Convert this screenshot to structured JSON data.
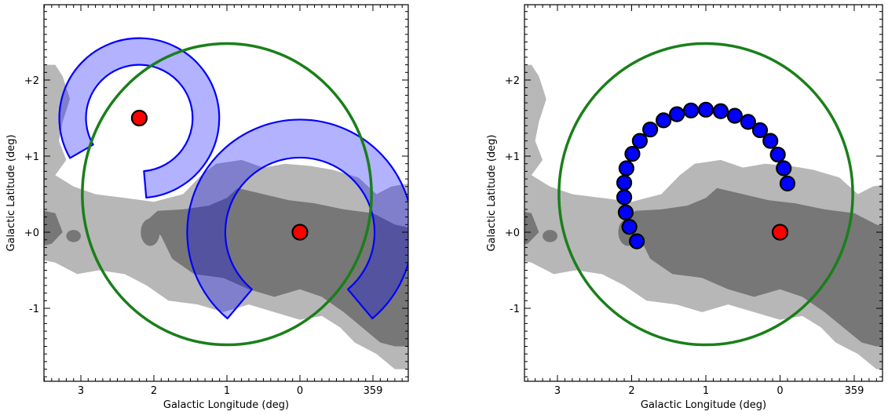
{
  "chart_data": [
    {
      "type": "scatter",
      "panel": "left",
      "xlabel": "Galactic Longitude (deg)",
      "ylabel": "Galactic Latitude (deg)",
      "xlim": [
        3.5,
        -1.5
      ],
      "ylim": [
        -2.05,
        3.05
      ],
      "xticks": [
        {
          "value": 3,
          "label": "3"
        },
        {
          "value": 2,
          "label": "2"
        },
        {
          "value": 1,
          "label": "1"
        },
        {
          "value": 0,
          "label": "0"
        },
        {
          "value": -1,
          "label": "359"
        }
      ],
      "yticks": [
        {
          "value": 2,
          "label": "+2"
        },
        {
          "value": 1,
          "label": "+1"
        },
        {
          "value": 0,
          "label": "+0"
        },
        {
          "value": -1,
          "label": "-1"
        }
      ],
      "grid": false,
      "green_circle": {
        "center": [
          1.0,
          0.5
        ],
        "radius": 1.98,
        "color": "#1a7f1a"
      },
      "sources": [
        {
          "l": 2.2,
          "b": 1.5,
          "color": "#ff0000"
        },
        {
          "l": 0.0,
          "b": 0.0,
          "color": "#ff0000"
        }
      ],
      "arc_bands": [
        {
          "center": [
            2.2,
            1.5
          ],
          "r_inner": 0.7,
          "r_outer": 1.05,
          "from_deg": -85,
          "to_deg": 210,
          "color": "#0000ff"
        },
        {
          "center": [
            0.0,
            0.0
          ],
          "r_inner": 0.98,
          "r_outer": 1.48,
          "from_deg": -50,
          "to_deg": 230,
          "color": "#0000ff"
        }
      ]
    },
    {
      "type": "scatter",
      "panel": "right",
      "xlabel": "Galactic Longitude (deg)",
      "ylabel": "Galactic Latitude (deg)",
      "xlim": [
        3.5,
        -1.5
      ],
      "ylim": [
        -2.05,
        3.05
      ],
      "xticks": [
        {
          "value": 3,
          "label": "3"
        },
        {
          "value": 2,
          "label": "2"
        },
        {
          "value": 1,
          "label": "1"
        },
        {
          "value": 0,
          "label": "0"
        },
        {
          "value": -1,
          "label": "359"
        }
      ],
      "yticks": [
        {
          "value": 2,
          "label": "+2"
        },
        {
          "value": 1,
          "label": "+1"
        },
        {
          "value": 0,
          "label": "+0"
        },
        {
          "value": -1,
          "label": "-1"
        }
      ],
      "grid": false,
      "green_circle": {
        "center": [
          1.0,
          0.5
        ],
        "radius": 1.98,
        "color": "#1a7f1a"
      },
      "sources": [
        {
          "l": 0.0,
          "b": 0.0,
          "color": "#ff0000"
        }
      ],
      "blue_points": {
        "color": "#0000ff",
        "l": [
          1.93,
          2.03,
          2.08,
          2.1,
          2.1,
          2.07,
          1.99,
          1.89,
          1.75,
          1.57,
          1.39,
          1.2,
          1.0,
          0.8,
          0.61,
          0.43,
          0.27,
          0.13,
          0.03,
          -0.05,
          -0.1
        ],
        "b": [
          -0.12,
          0.07,
          0.26,
          0.46,
          0.65,
          0.84,
          1.03,
          1.2,
          1.35,
          1.47,
          1.55,
          1.6,
          1.61,
          1.59,
          1.53,
          1.45,
          1.34,
          1.2,
          1.02,
          0.84,
          0.64
        ]
      }
    }
  ],
  "colors": {
    "cloud_light": "#b7b7b7",
    "cloud_dark": "#777777",
    "frame": "#000000"
  }
}
